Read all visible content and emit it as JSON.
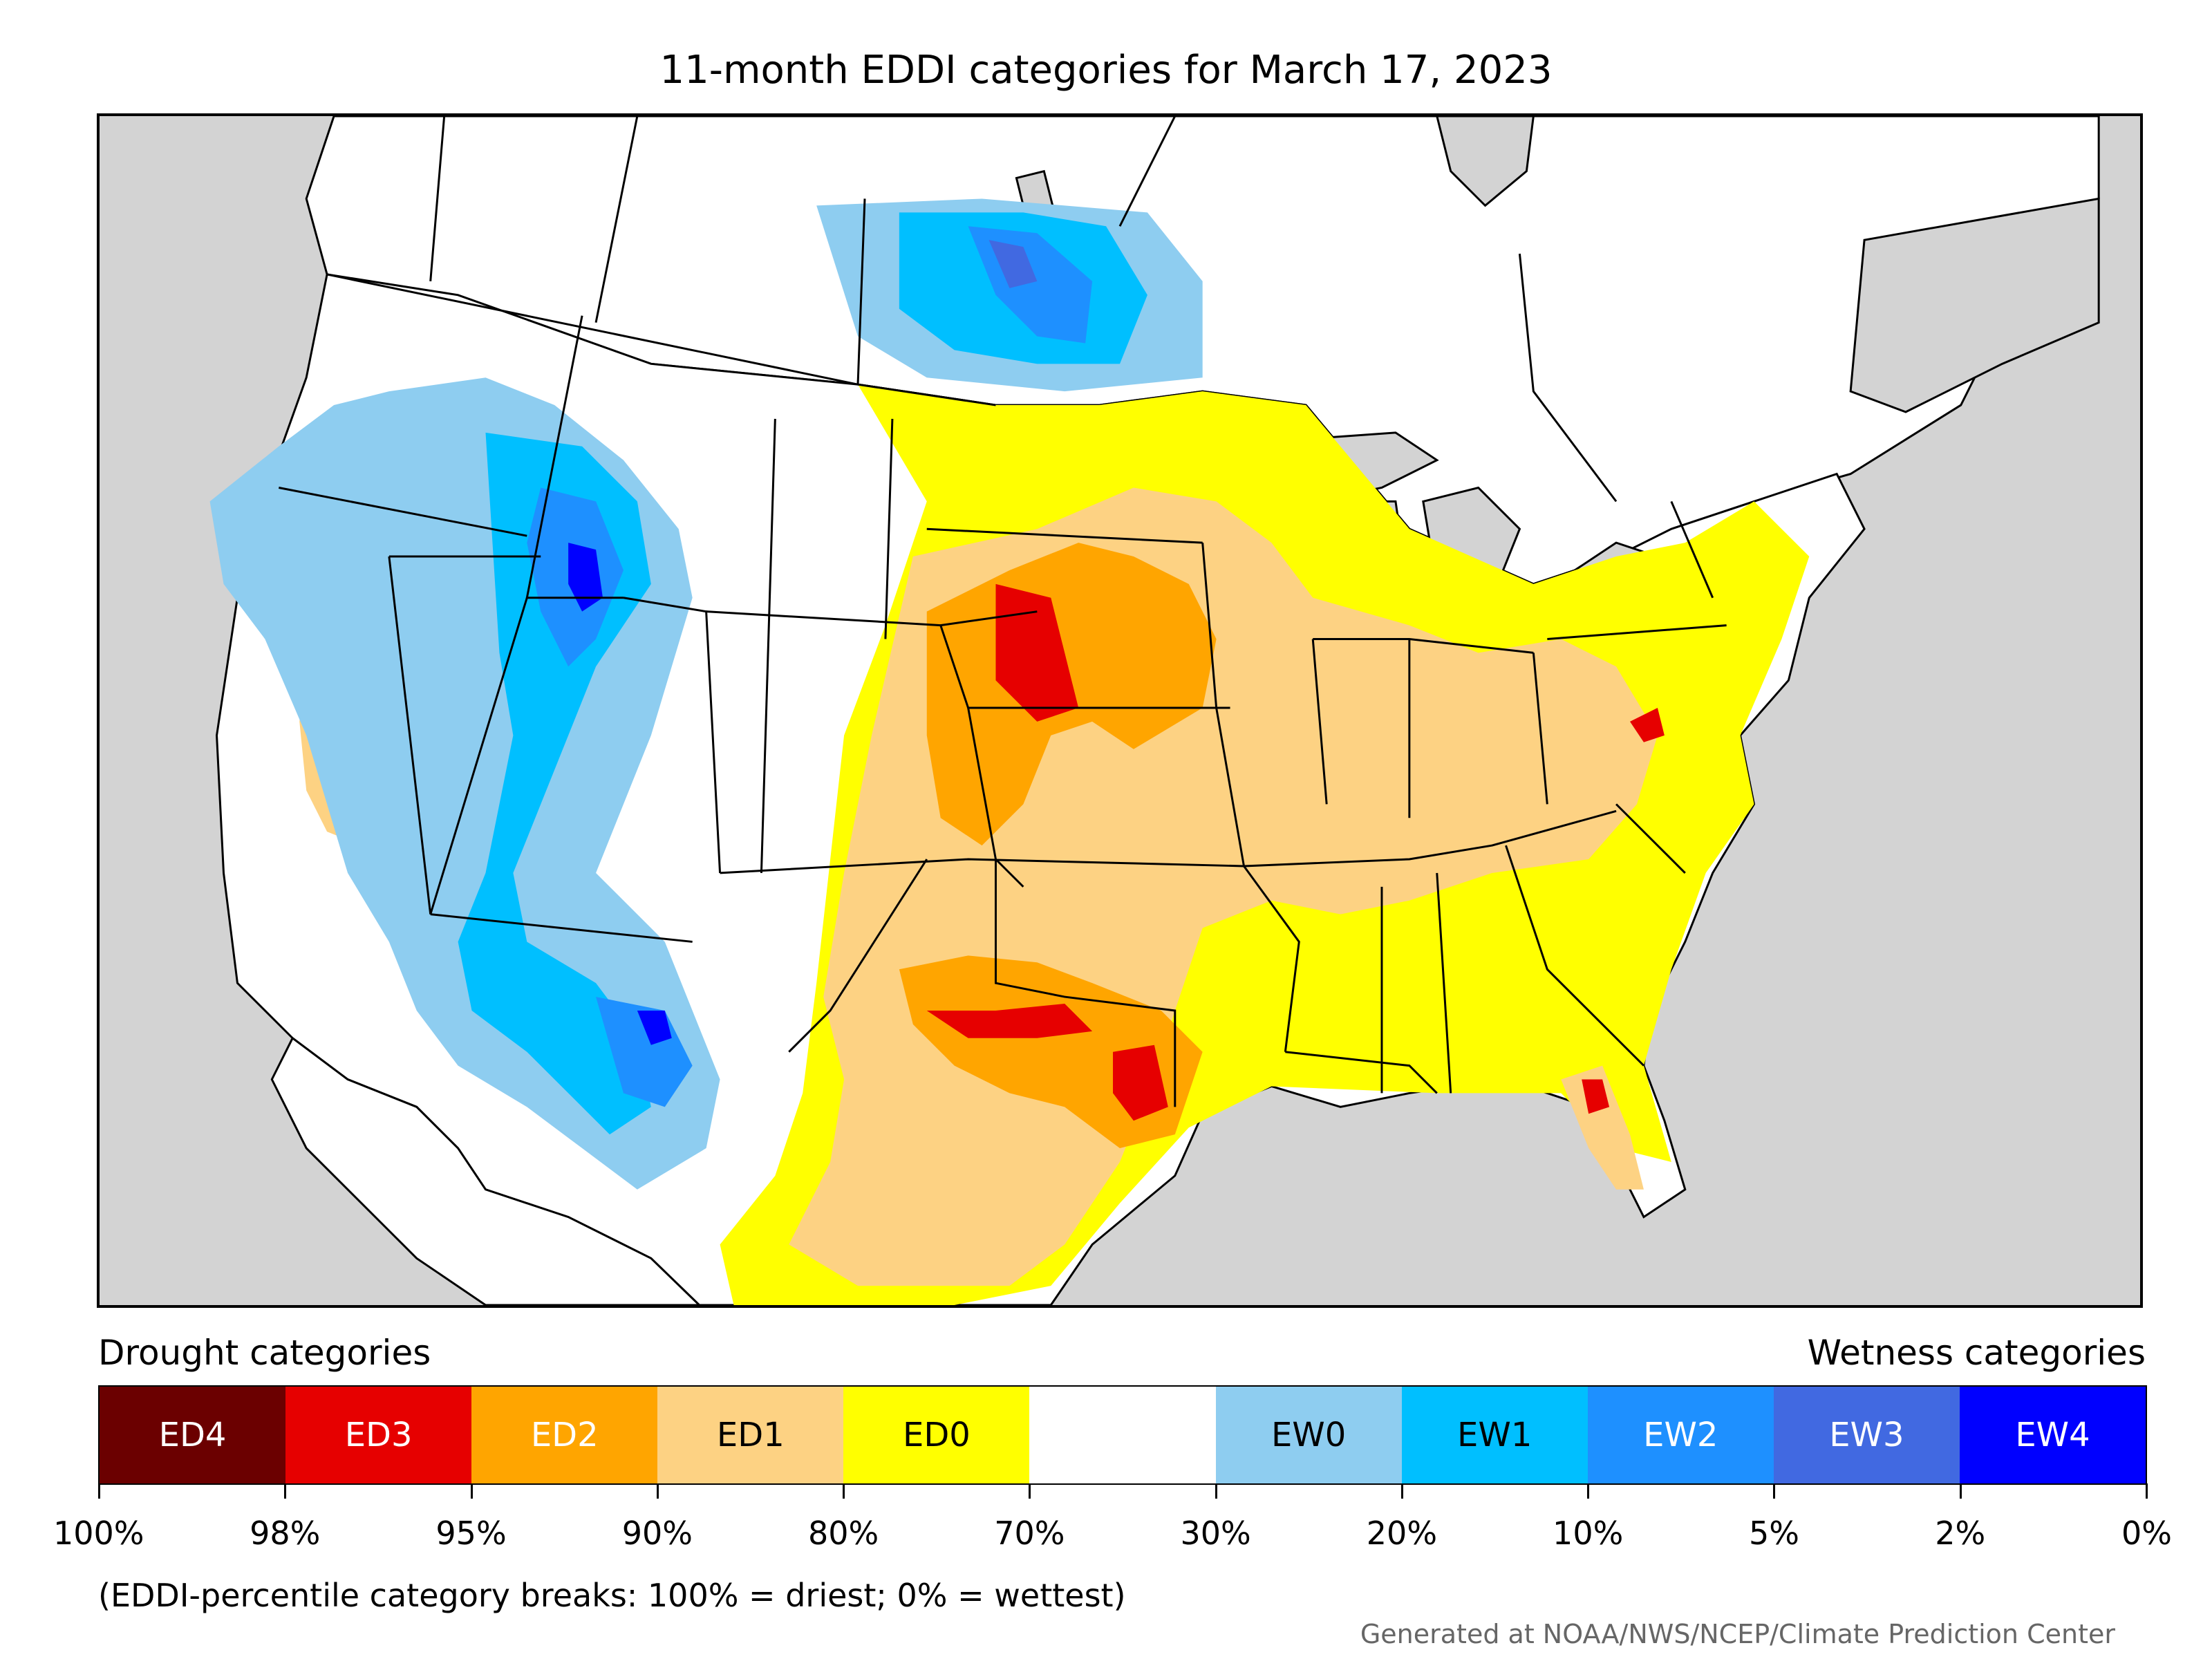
{
  "title": "11-month EDDI categories for March 17, 2023",
  "legend": {
    "drought_heading": "Drought categories",
    "wetness_heading": "Wetness categories",
    "categories": [
      {
        "label": "ED4",
        "color": "#6b0000",
        "text_color": "#ffffff"
      },
      {
        "label": "ED3",
        "color": "#e60000",
        "text_color": "#ffffff"
      },
      {
        "label": "ED2",
        "color": "#ffa500",
        "text_color": "#ffffff"
      },
      {
        "label": "ED1",
        "color": "#fdd283",
        "text_color": "#000000"
      },
      {
        "label": "ED0",
        "color": "#ffff00",
        "text_color": "#000000"
      },
      {
        "label": "",
        "color": "#ffffff",
        "text_color": "#000000"
      },
      {
        "label": "EW0",
        "color": "#8ecdf0",
        "text_color": "#000000"
      },
      {
        "label": "EW1",
        "color": "#00bfff",
        "text_color": "#000000"
      },
      {
        "label": "EW2",
        "color": "#1e90ff",
        "text_color": "#ffffff"
      },
      {
        "label": "EW3",
        "color": "#4169e1",
        "text_color": "#ffffff"
      },
      {
        "label": "EW4",
        "color": "#0000ff",
        "text_color": "#ffffff"
      }
    ],
    "breaks": [
      "100%",
      "98%",
      "95%",
      "90%",
      "80%",
      "70%",
      "30%",
      "20%",
      "10%",
      "5%",
      "2%",
      "0%"
    ]
  },
  "note": "(EDDI-percentile category breaks: 100% = driest; 0% = wettest)",
  "credit": "Generated at NOAA/NWS/NCEP/Climate Prediction Center",
  "map_colors": {
    "ocean": "#d3d3d3",
    "land": "#ffffff",
    "border": "#000000"
  }
}
